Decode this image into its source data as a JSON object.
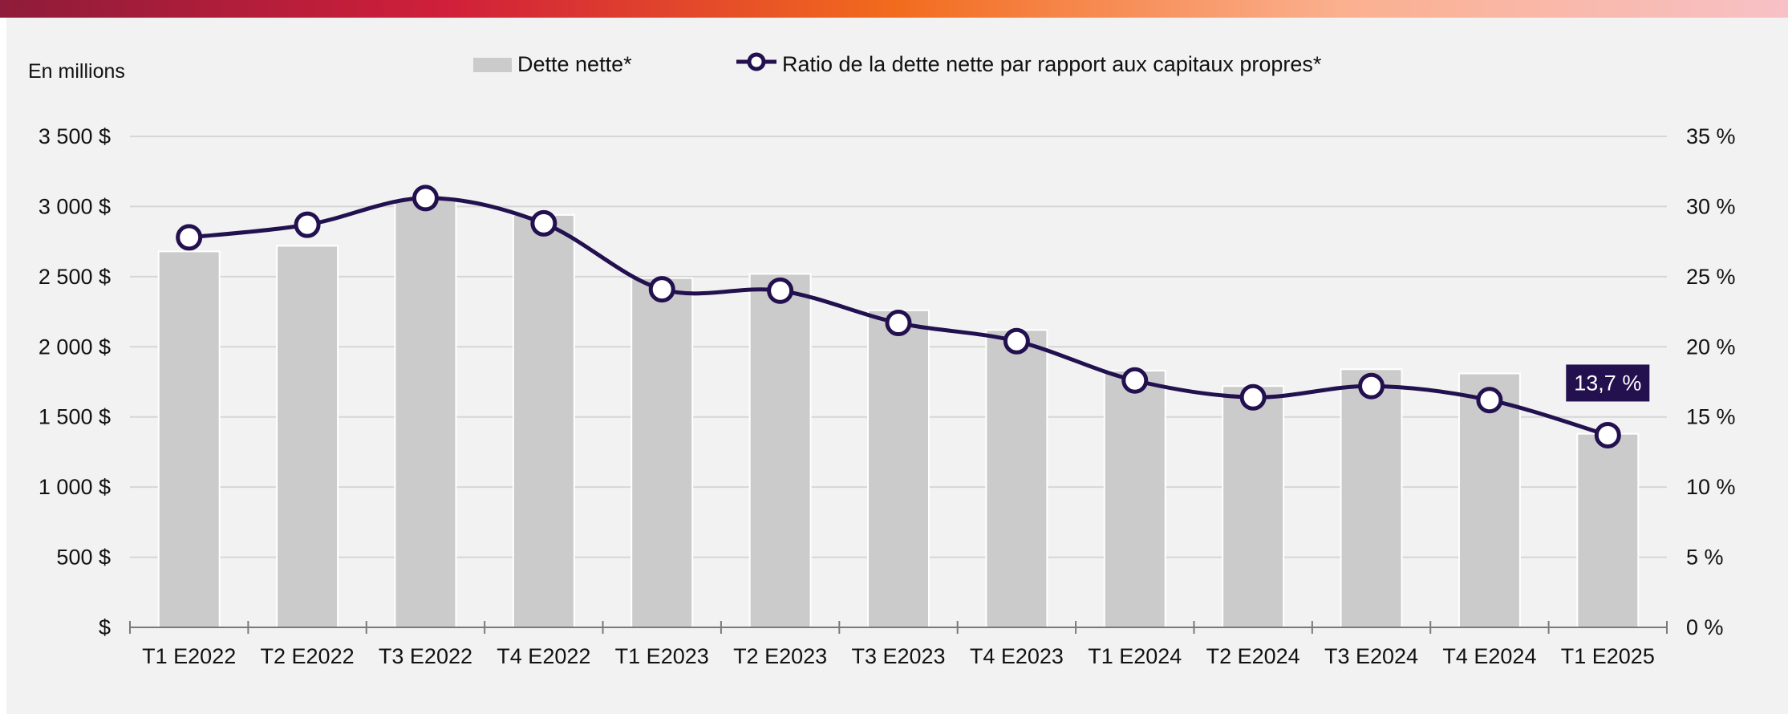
{
  "colors": {
    "bar": "#cbcbcb",
    "line": "#22104f",
    "marker_fill": "#ffffff",
    "grid": "#d6d6d6",
    "panel": "#f2f2f2",
    "callout_bg": "#22104f",
    "band_stops": [
      "#8e1c3a",
      "#d01f3a",
      "#f26b1d",
      "#fbb08f",
      "#f7c1c6"
    ]
  },
  "chart_data": {
    "type": "bar",
    "unit_label": "En millions",
    "legend": {
      "placement": "top-center",
      "bar_label": "Dette nette*",
      "line_label": "Ratio de la dette nette par rapport aux capitaux propres*"
    },
    "categories": [
      "T1 E2022",
      "T2 E2022",
      "T3 E2022",
      "T4 E2022",
      "T1 E2023",
      "T2 E2023",
      "T3 E2023",
      "T4 E2023",
      "T1 E2024",
      "T2 E2024",
      "T3 E2024",
      "T4 E2024",
      "T1 E2025"
    ],
    "series": [
      {
        "name": "Dette nette*",
        "type": "bar",
        "axis": "left",
        "values": [
          2680,
          2720,
          3050,
          2940,
          2490,
          2520,
          2260,
          2120,
          1830,
          1720,
          1840,
          1810,
          1380
        ]
      },
      {
        "name": "Ratio de la dette nette par rapport aux capitaux propres*",
        "type": "line",
        "axis": "right",
        "values": [
          27.8,
          28.7,
          30.6,
          28.8,
          24.1,
          24.0,
          21.7,
          20.4,
          17.6,
          16.4,
          17.2,
          16.2,
          13.7
        ]
      }
    ],
    "y_left": {
      "lim": [
        0,
        3500
      ],
      "ticks": [
        0,
        500,
        1000,
        1500,
        2000,
        2500,
        3000,
        3500
      ],
      "tick_labels": [
        "$",
        "500 $",
        "1 000 $",
        "1 500 $",
        "2 000 $",
        "2 500 $",
        "3 000 $",
        "3 500 $"
      ]
    },
    "y_right": {
      "lim": [
        0,
        35
      ],
      "ticks": [
        0,
        5,
        10,
        15,
        20,
        25,
        30,
        35
      ],
      "tick_labels": [
        "0 %",
        "5 %",
        "10 %",
        "15 %",
        "20 %",
        "25 %",
        "30 %",
        "35 %"
      ]
    },
    "annotation": {
      "category": "T1 E2025",
      "text": "13,7 %"
    },
    "grid": true
  }
}
